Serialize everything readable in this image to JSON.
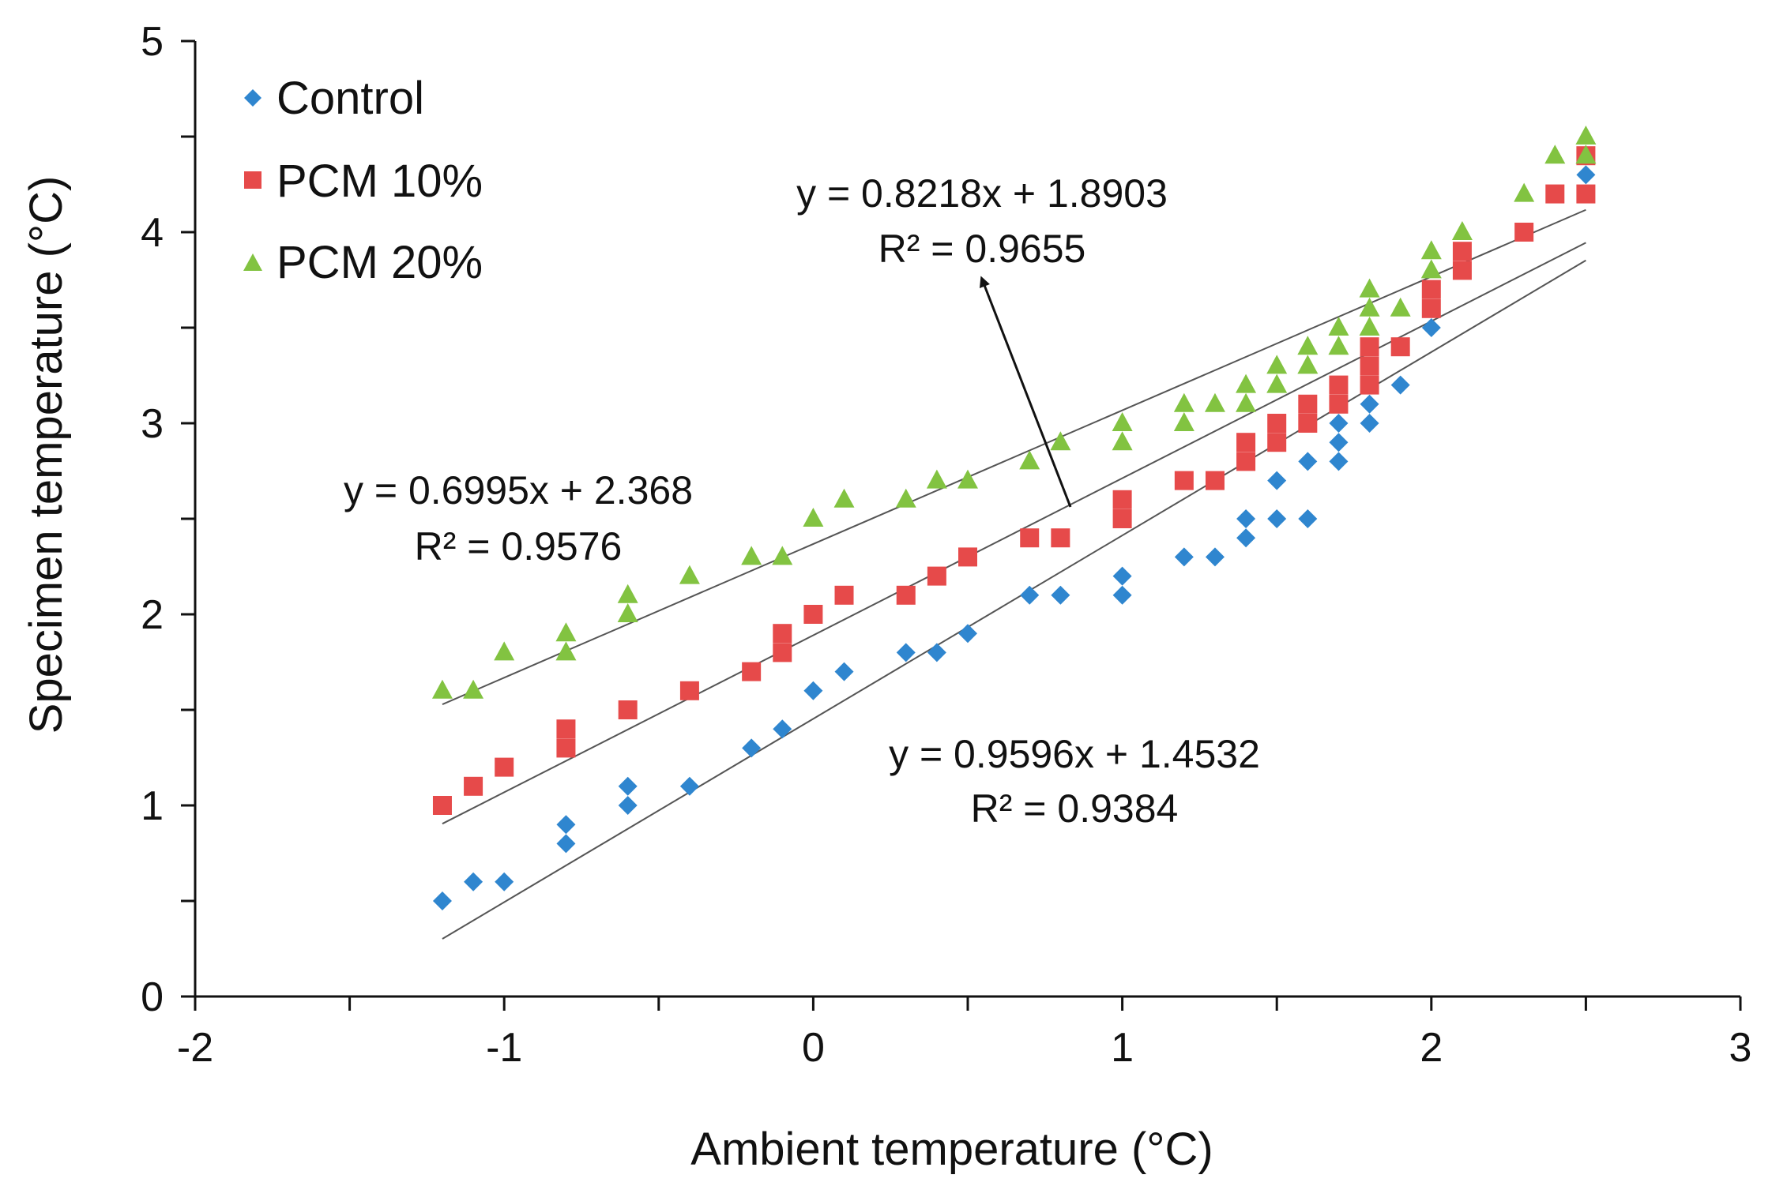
{
  "chart_data": {
    "type": "scatter",
    "title": "",
    "xlabel": "Ambient temperature (°C)",
    "ylabel": "Specimen temperature (°C)",
    "xlim": [
      -2,
      3
    ],
    "ylim": [
      0,
      5
    ],
    "x_ticks": [
      "-2",
      "-1",
      "0",
      "1",
      "2",
      "3"
    ],
    "y_ticks": [
      "0",
      "1",
      "2",
      "3",
      "4",
      "5"
    ],
    "legend": {
      "position": "top-left",
      "entries": [
        "Control",
        "PCM 10%",
        "PCM 20%"
      ]
    },
    "series": [
      {
        "name": "Control",
        "marker": "diamond",
        "color": "#2f86cf",
        "points": [
          [
            -1.2,
            0.5
          ],
          [
            -1.1,
            0.6
          ],
          [
            -1.0,
            0.6
          ],
          [
            -0.8,
            0.8
          ],
          [
            -0.8,
            0.9
          ],
          [
            -0.6,
            1.0
          ],
          [
            -0.6,
            1.1
          ],
          [
            -0.4,
            1.1
          ],
          [
            -0.2,
            1.3
          ],
          [
            -0.1,
            1.4
          ],
          [
            0.0,
            1.6
          ],
          [
            0.1,
            1.7
          ],
          [
            0.3,
            1.8
          ],
          [
            0.4,
            1.8
          ],
          [
            0.5,
            1.9
          ],
          [
            0.7,
            2.1
          ],
          [
            0.8,
            2.1
          ],
          [
            1.0,
            2.1
          ],
          [
            1.0,
            2.2
          ],
          [
            1.2,
            2.3
          ],
          [
            1.3,
            2.3
          ],
          [
            1.4,
            2.4
          ],
          [
            1.4,
            2.5
          ],
          [
            1.5,
            2.5
          ],
          [
            1.5,
            2.7
          ],
          [
            1.6,
            2.5
          ],
          [
            1.6,
            2.8
          ],
          [
            1.7,
            2.8
          ],
          [
            1.7,
            2.9
          ],
          [
            1.7,
            3.0
          ],
          [
            1.8,
            3.0
          ],
          [
            1.8,
            3.1
          ],
          [
            1.9,
            3.2
          ],
          [
            2.0,
            3.5
          ],
          [
            2.5,
            4.3
          ]
        ],
        "trendline": {
          "slope": 0.9596,
          "intercept": 1.4532,
          "equation": "y = 0.9596x + 1.4532",
          "r2": "R² = 0.9384"
        }
      },
      {
        "name": "PCM 10%",
        "marker": "square",
        "color": "#e64a4a",
        "points": [
          [
            -1.2,
            1.0
          ],
          [
            -1.1,
            1.1
          ],
          [
            -1.0,
            1.2
          ],
          [
            -0.8,
            1.3
          ],
          [
            -0.8,
            1.4
          ],
          [
            -0.6,
            1.5
          ],
          [
            -0.4,
            1.6
          ],
          [
            -0.2,
            1.7
          ],
          [
            -0.1,
            1.8
          ],
          [
            -0.1,
            1.9
          ],
          [
            0.0,
            2.0
          ],
          [
            0.1,
            2.1
          ],
          [
            0.3,
            2.1
          ],
          [
            0.4,
            2.2
          ],
          [
            0.5,
            2.3
          ],
          [
            0.7,
            2.4
          ],
          [
            0.8,
            2.4
          ],
          [
            1.0,
            2.5
          ],
          [
            1.0,
            2.6
          ],
          [
            1.2,
            2.7
          ],
          [
            1.3,
            2.7
          ],
          [
            1.4,
            2.8
          ],
          [
            1.4,
            2.9
          ],
          [
            1.5,
            2.9
          ],
          [
            1.5,
            3.0
          ],
          [
            1.6,
            3.0
          ],
          [
            1.6,
            3.1
          ],
          [
            1.7,
            3.1
          ],
          [
            1.7,
            3.2
          ],
          [
            1.8,
            3.2
          ],
          [
            1.8,
            3.3
          ],
          [
            1.8,
            3.4
          ],
          [
            1.9,
            3.4
          ],
          [
            2.0,
            3.6
          ],
          [
            2.0,
            3.7
          ],
          [
            2.1,
            3.8
          ],
          [
            2.1,
            3.9
          ],
          [
            2.3,
            4.0
          ],
          [
            2.4,
            4.2
          ],
          [
            2.5,
            4.2
          ],
          [
            2.5,
            4.4
          ]
        ],
        "trendline": {
          "slope": 0.8218,
          "intercept": 1.8903,
          "equation": "y = 0.8218x + 1.8903",
          "r2": "R² = 0.9655"
        }
      },
      {
        "name": "PCM 20%",
        "marker": "triangle",
        "color": "#82c341",
        "points": [
          [
            -1.2,
            1.6
          ],
          [
            -1.1,
            1.6
          ],
          [
            -1.0,
            1.8
          ],
          [
            -0.8,
            1.8
          ],
          [
            -0.8,
            1.9
          ],
          [
            -0.6,
            2.0
          ],
          [
            -0.6,
            2.1
          ],
          [
            -0.4,
            2.2
          ],
          [
            -0.2,
            2.3
          ],
          [
            -0.1,
            2.3
          ],
          [
            0.0,
            2.5
          ],
          [
            0.1,
            2.6
          ],
          [
            0.3,
            2.6
          ],
          [
            0.4,
            2.7
          ],
          [
            0.5,
            2.7
          ],
          [
            0.7,
            2.8
          ],
          [
            0.8,
            2.9
          ],
          [
            1.0,
            2.9
          ],
          [
            1.0,
            3.0
          ],
          [
            1.2,
            3.0
          ],
          [
            1.2,
            3.1
          ],
          [
            1.3,
            3.1
          ],
          [
            1.4,
            3.1
          ],
          [
            1.4,
            3.2
          ],
          [
            1.5,
            3.2
          ],
          [
            1.5,
            3.3
          ],
          [
            1.6,
            3.3
          ],
          [
            1.6,
            3.4
          ],
          [
            1.7,
            3.4
          ],
          [
            1.7,
            3.5
          ],
          [
            1.8,
            3.5
          ],
          [
            1.8,
            3.6
          ],
          [
            1.8,
            3.7
          ],
          [
            1.9,
            3.6
          ],
          [
            2.0,
            3.8
          ],
          [
            2.0,
            3.9
          ],
          [
            2.1,
            4.0
          ],
          [
            2.3,
            4.2
          ],
          [
            2.4,
            4.4
          ],
          [
            2.5,
            4.4
          ],
          [
            2.5,
            4.5
          ]
        ],
        "trendline": {
          "slope": 0.6995,
          "intercept": 2.368,
          "equation": "y = 0.6995x + 2.368",
          "r2": "R² = 0.9576"
        }
      }
    ],
    "trendline_x_range": [
      -1.2,
      2.5
    ]
  }
}
